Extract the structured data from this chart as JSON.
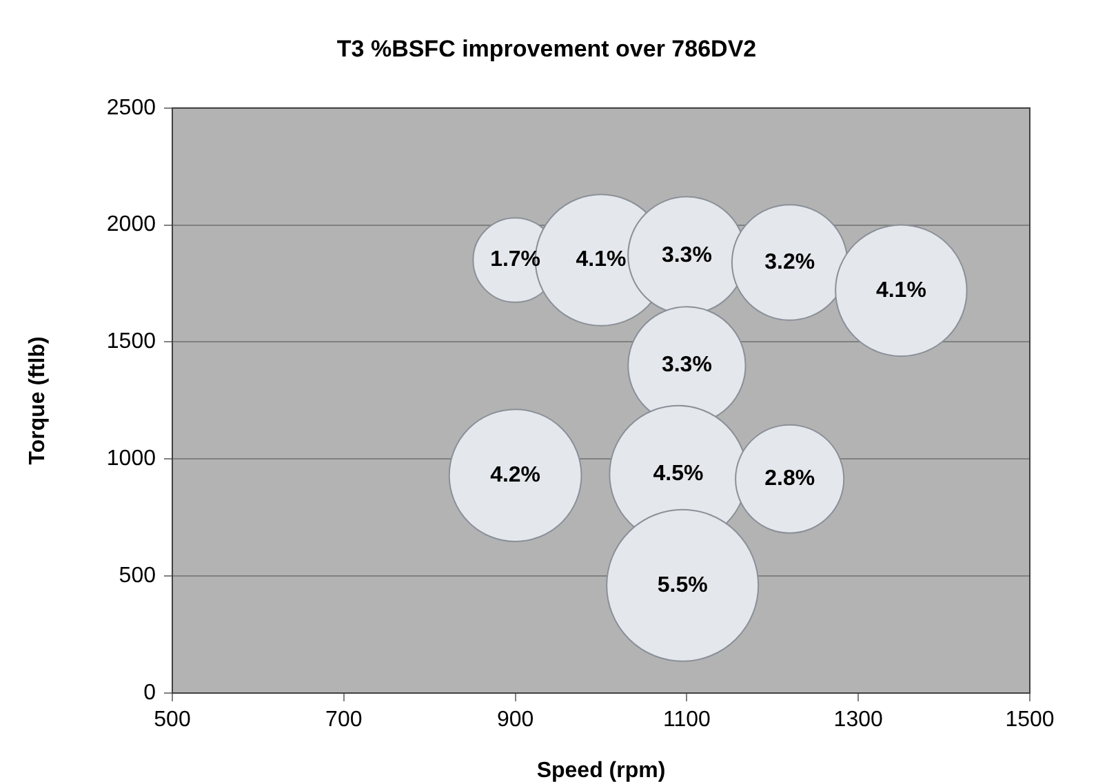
{
  "chart_data": {
    "type": "bubble",
    "title": "T3 %BSFC improvement over 786DV2",
    "xlabel": "Speed (rpm)",
    "ylabel": "Torque (ftlb)",
    "x": [
      900,
      1000,
      1100,
      1220,
      1350,
      1100,
      900,
      1090,
      1220,
      1095
    ],
    "values": [
      1850,
      1850,
      1870,
      1840,
      1720,
      1400,
      930,
      935,
      915,
      460
    ],
    "sizes": [
      0.31,
      0.75,
      0.6,
      0.58,
      0.75,
      0.6,
      0.76,
      0.82,
      0.51,
      1
    ],
    "annotations": [
      {
        "text": "1.7%",
        "x": 900,
        "y": 1850
      },
      {
        "text": "4.1%",
        "x": 1000,
        "y": 1850
      },
      {
        "text": "3.3%",
        "x": 1100,
        "y": 1870
      },
      {
        "text": "3.2%",
        "x": 1220,
        "y": 1840
      },
      {
        "text": "4.1%",
        "x": 1350,
        "y": 1720
      },
      {
        "text": "3.3%",
        "x": 1100,
        "y": 1400
      },
      {
        "text": "4.2%",
        "x": 900,
        "y": 930
      },
      {
        "text": "4.5%",
        "x": 1090,
        "y": 935
      },
      {
        "text": "2.8%",
        "x": 1220,
        "y": 915
      },
      {
        "text": "5.5%",
        "x": 1095,
        "y": 460
      }
    ],
    "color": "#e4e7eb",
    "xlim": [
      500,
      1500
    ],
    "xticks": [
      500,
      700,
      900,
      1100,
      1300,
      1500
    ],
    "ylim": [
      0,
      2500
    ],
    "yticks": [
      0,
      500,
      1000,
      1500,
      2000,
      2500
    ],
    "grid": "y",
    "legend": false
  }
}
